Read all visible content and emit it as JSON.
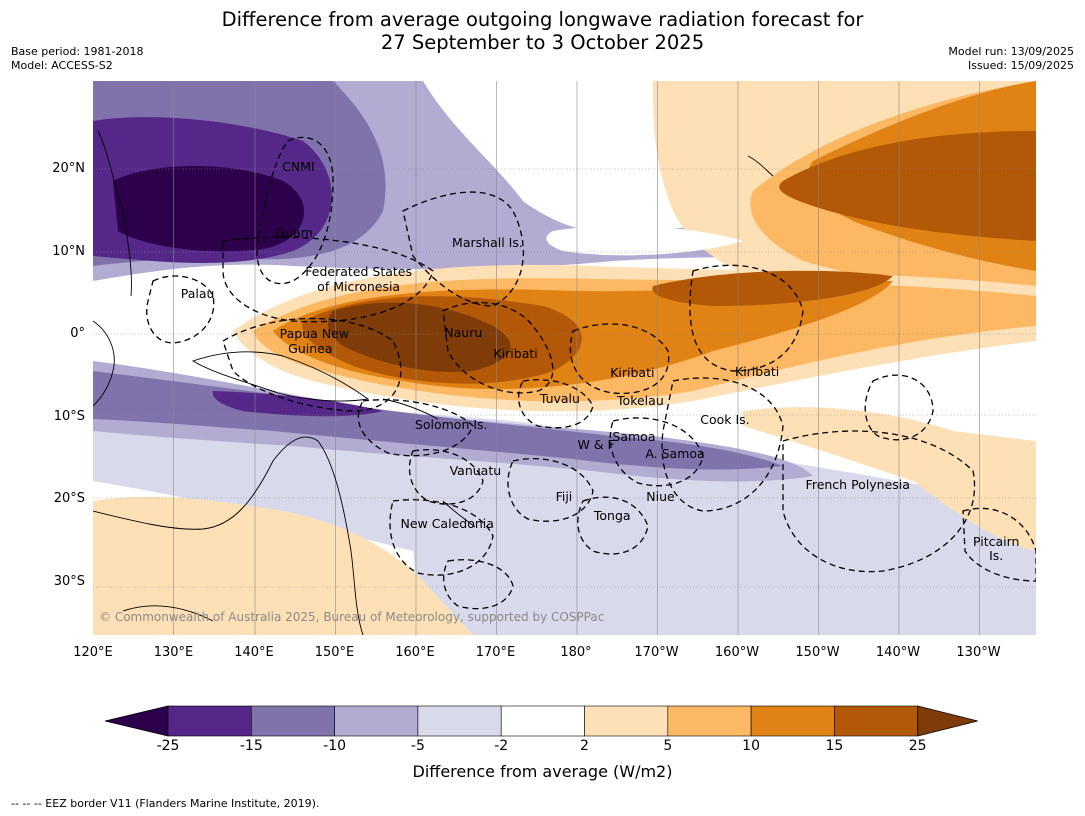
{
  "title_line1": "Difference from average outgoing longwave radiation forecast for",
  "title_line2": "27 September to 3 October 2025",
  "meta": {
    "base_period": "Base period: 1981-2018",
    "model": "Model: ACCESS-S2",
    "model_run": "Model run: 13/09/2025",
    "issued": "Issued: 15/09/2025"
  },
  "map": {
    "lon_labels": [
      "120°E",
      "130°E",
      "140°E",
      "150°E",
      "160°E",
      "170°E",
      "180°",
      "170°W",
      "160°W",
      "150°W",
      "140°W",
      "130°W"
    ],
    "lat_labels": [
      "20°N",
      "10°N",
      "0°",
      "10°S",
      "20°S",
      "30°S"
    ],
    "places": [
      {
        "name": "CNMI",
        "lon": 145.5,
        "lat": 20.3
      },
      {
        "name": "Guam",
        "lon": 145.0,
        "lat": 12.2
      },
      {
        "name": "Marshall Is.",
        "lon": 169.0,
        "lat": 11.0
      },
      {
        "name": "Federated States",
        "lon": 153.0,
        "lat": 7.5
      },
      {
        "name": "of Micronesia",
        "lon": 153.0,
        "lat": 5.7
      },
      {
        "name": "Palau",
        "lon": 133.0,
        "lat": 4.8
      },
      {
        "name": "Papua New",
        "lon": 147.5,
        "lat": 0.0
      },
      {
        "name": "Guinea",
        "lon": 147.0,
        "lat": -1.8
      },
      {
        "name": "Nauru",
        "lon": 166.0,
        "lat": 0.1
      },
      {
        "name": "Kiribati",
        "lon": 172.5,
        "lat": -2.4
      },
      {
        "name": "Kiribati",
        "lon": -173.0,
        "lat": -4.7
      },
      {
        "name": "Kiribati",
        "lon": -157.5,
        "lat": -4.6
      },
      {
        "name": "Tuvalu",
        "lon": 178.0,
        "lat": -7.9
      },
      {
        "name": "Tokelau",
        "lon": -172.0,
        "lat": -8.1
      },
      {
        "name": "Cook Is.",
        "lon": -161.5,
        "lat": -10.4
      },
      {
        "name": "Solomon Is.",
        "lon": 164.5,
        "lat": -11.0
      },
      {
        "name": "Samoa",
        "lon": -172.8,
        "lat": -12.5
      },
      {
        "name": "W & F",
        "lon": -177.5,
        "lat": -13.4
      },
      {
        "name": "A. Samoa",
        "lon": -167.7,
        "lat": -14.6
      },
      {
        "name": "Vanuatu",
        "lon": 167.5,
        "lat": -16.6
      },
      {
        "name": "French Polynesia",
        "lon": -145.0,
        "lat": -18.3
      },
      {
        "name": "Fiji",
        "lon": 178.5,
        "lat": -19.8
      },
      {
        "name": "Niue",
        "lon": -169.5,
        "lat": -19.7
      },
      {
        "name": "Tonga",
        "lon": -175.5,
        "lat": -22.0
      },
      {
        "name": "New Caledonia",
        "lon": 164.0,
        "lat": -23.0
      },
      {
        "name": "Pitcairn",
        "lon": -127.8,
        "lat": -25.2
      },
      {
        "name": "Is.",
        "lon": -127.8,
        "lat": -26.9
      }
    ],
    "copyright": "© Commonwealth of Australia 2025, Bureau of Meteorology, supported by COSPPac"
  },
  "colorbar": {
    "label": "Difference from average (W/m2)",
    "ticks": [
      "-25",
      "-15",
      "-10",
      "-5",
      "-2",
      "2",
      "5",
      "10",
      "15",
      "25"
    ],
    "colors": [
      "#2d004b",
      "#542788",
      "#8073ac",
      "#b2abd2",
      "#d8daeb",
      "#ffffff",
      "#fee0b6",
      "#fdb863",
      "#e08214",
      "#b35806",
      "#7f3b08"
    ]
  },
  "footnote": "--  --  -- EEZ border V11 (Flanders Marine Institute, 2019)."
}
